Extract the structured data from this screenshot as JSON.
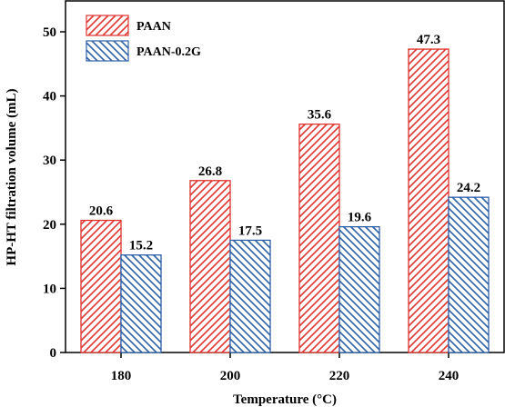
{
  "chart_data": {
    "type": "bar",
    "xlabel": "Temperature (°C)",
    "ylabel": "HP-HT filtration volume (mL)",
    "categories": [
      "180",
      "200",
      "220",
      "240"
    ],
    "ylim": [
      0,
      50
    ],
    "yticks": [
      "0",
      "10",
      "20",
      "30",
      "40",
      "50"
    ],
    "series": [
      {
        "name": "PAAN",
        "values": [
          20.6,
          26.8,
          35.6,
          47.3
        ],
        "labels": [
          "20.6",
          "26.8",
          "35.6",
          "47.3"
        ],
        "color": "#e0332e",
        "hatch": "diagonal-up"
      },
      {
        "name": "PAAN-0.2G",
        "values": [
          15.2,
          17.5,
          19.6,
          24.2
        ],
        "labels": [
          "15.2",
          "17.5",
          "19.6",
          "24.2"
        ],
        "color": "#2c5fa8",
        "hatch": "diagonal-down"
      }
    ],
    "legend": "top-left",
    "grid": false
  }
}
